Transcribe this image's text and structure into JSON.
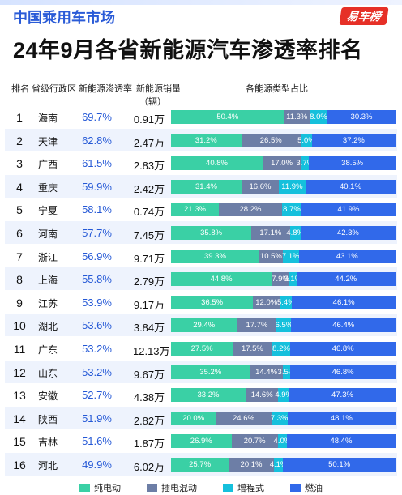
{
  "header": {
    "brand": "中国乘用车市场",
    "logo_text": "易车榜",
    "title": "24年9月各省新能源汽车渗透率排名"
  },
  "columns": {
    "rank": "排名",
    "province": "省级行政区",
    "penetration": "新能源渗透率",
    "sales": "新能源销量",
    "sales_unit": "（辆）",
    "share": "各能源类型占比"
  },
  "colors": {
    "bev": "#3ad0a5",
    "phev": "#6d7ea6",
    "erev": "#15c0dc",
    "ice": "#3169ea",
    "rate_text": "#2458d6"
  },
  "chart_data": {
    "type": "table",
    "series_names": [
      "纯电动",
      "插电混动",
      "增程式",
      "燃油"
    ],
    "rows": [
      {
        "rank": "1",
        "province": "海南",
        "penetration": "69.7%",
        "sales": "0.91万",
        "bev": "50.4%",
        "phev": "11.3%",
        "erev": "8.0%",
        "ice": "30.3%"
      },
      {
        "rank": "2",
        "province": "天津",
        "penetration": "62.8%",
        "sales": "2.47万",
        "bev": "31.2%",
        "phev": "26.5%",
        "erev": "5.0%",
        "ice": "37.2%"
      },
      {
        "rank": "3",
        "province": "广西",
        "penetration": "61.5%",
        "sales": "2.83万",
        "bev": "40.8%",
        "phev": "17.0%",
        "erev": "3.7%",
        "ice": "38.5%"
      },
      {
        "rank": "4",
        "province": "重庆",
        "penetration": "59.9%",
        "sales": "2.42万",
        "bev": "31.4%",
        "phev": "16.6%",
        "erev": "11.9%",
        "ice": "40.1%"
      },
      {
        "rank": "5",
        "province": "宁夏",
        "penetration": "58.1%",
        "sales": "0.74万",
        "bev": "21.3%",
        "phev": "28.2%",
        "erev": "8.7%",
        "ice": "41.9%"
      },
      {
        "rank": "6",
        "province": "河南",
        "penetration": "57.7%",
        "sales": "7.45万",
        "bev": "35.8%",
        "phev": "17.1%",
        "erev": "4.8%",
        "ice": "42.3%"
      },
      {
        "rank": "7",
        "province": "浙江",
        "penetration": "56.9%",
        "sales": "9.71万",
        "bev": "39.3%",
        "phev": "10.5%",
        "erev": "7.1%",
        "ice": "43.1%"
      },
      {
        "rank": "8",
        "province": "上海",
        "penetration": "55.8%",
        "sales": "2.79万",
        "bev": "44.8%",
        "phev": "7.9%",
        "erev": "3.1%",
        "ice": "44.2%"
      },
      {
        "rank": "9",
        "province": "江苏",
        "penetration": "53.9%",
        "sales": "9.17万",
        "bev": "36.5%",
        "phev": "12.0%",
        "erev": "5.4%",
        "ice": "46.1%"
      },
      {
        "rank": "10",
        "province": "湖北",
        "penetration": "53.6%",
        "sales": "3.84万",
        "bev": "29.4%",
        "phev": "17.7%",
        "erev": "6.5%",
        "ice": "46.4%"
      },
      {
        "rank": "11",
        "province": "广东",
        "penetration": "53.2%",
        "sales": "12.13万",
        "bev": "27.5%",
        "phev": "17.5%",
        "erev": "8.2%",
        "ice": "46.8%"
      },
      {
        "rank": "12",
        "province": "山东",
        "penetration": "53.2%",
        "sales": "9.67万",
        "bev": "35.2%",
        "phev": "14.4%",
        "erev": "3.5%",
        "ice": "46.8%"
      },
      {
        "rank": "13",
        "province": "安徽",
        "penetration": "52.7%",
        "sales": "4.38万",
        "bev": "33.2%",
        "phev": "14.6%",
        "erev": "4.9%",
        "ice": "47.3%"
      },
      {
        "rank": "14",
        "province": "陕西",
        "penetration": "51.9%",
        "sales": "2.82万",
        "bev": "20.0%",
        "phev": "24.6%",
        "erev": "7.3%",
        "ice": "48.1%"
      },
      {
        "rank": "15",
        "province": "吉林",
        "penetration": "51.6%",
        "sales": "1.87万",
        "bev": "26.9%",
        "phev": "20.7%",
        "erev": "4.0%",
        "ice": "48.4%"
      },
      {
        "rank": "16",
        "province": "河北",
        "penetration": "49.9%",
        "sales": "6.02万",
        "bev": "25.7%",
        "phev": "20.1%",
        "erev": "4.1%",
        "ice": "50.1%"
      }
    ]
  }
}
